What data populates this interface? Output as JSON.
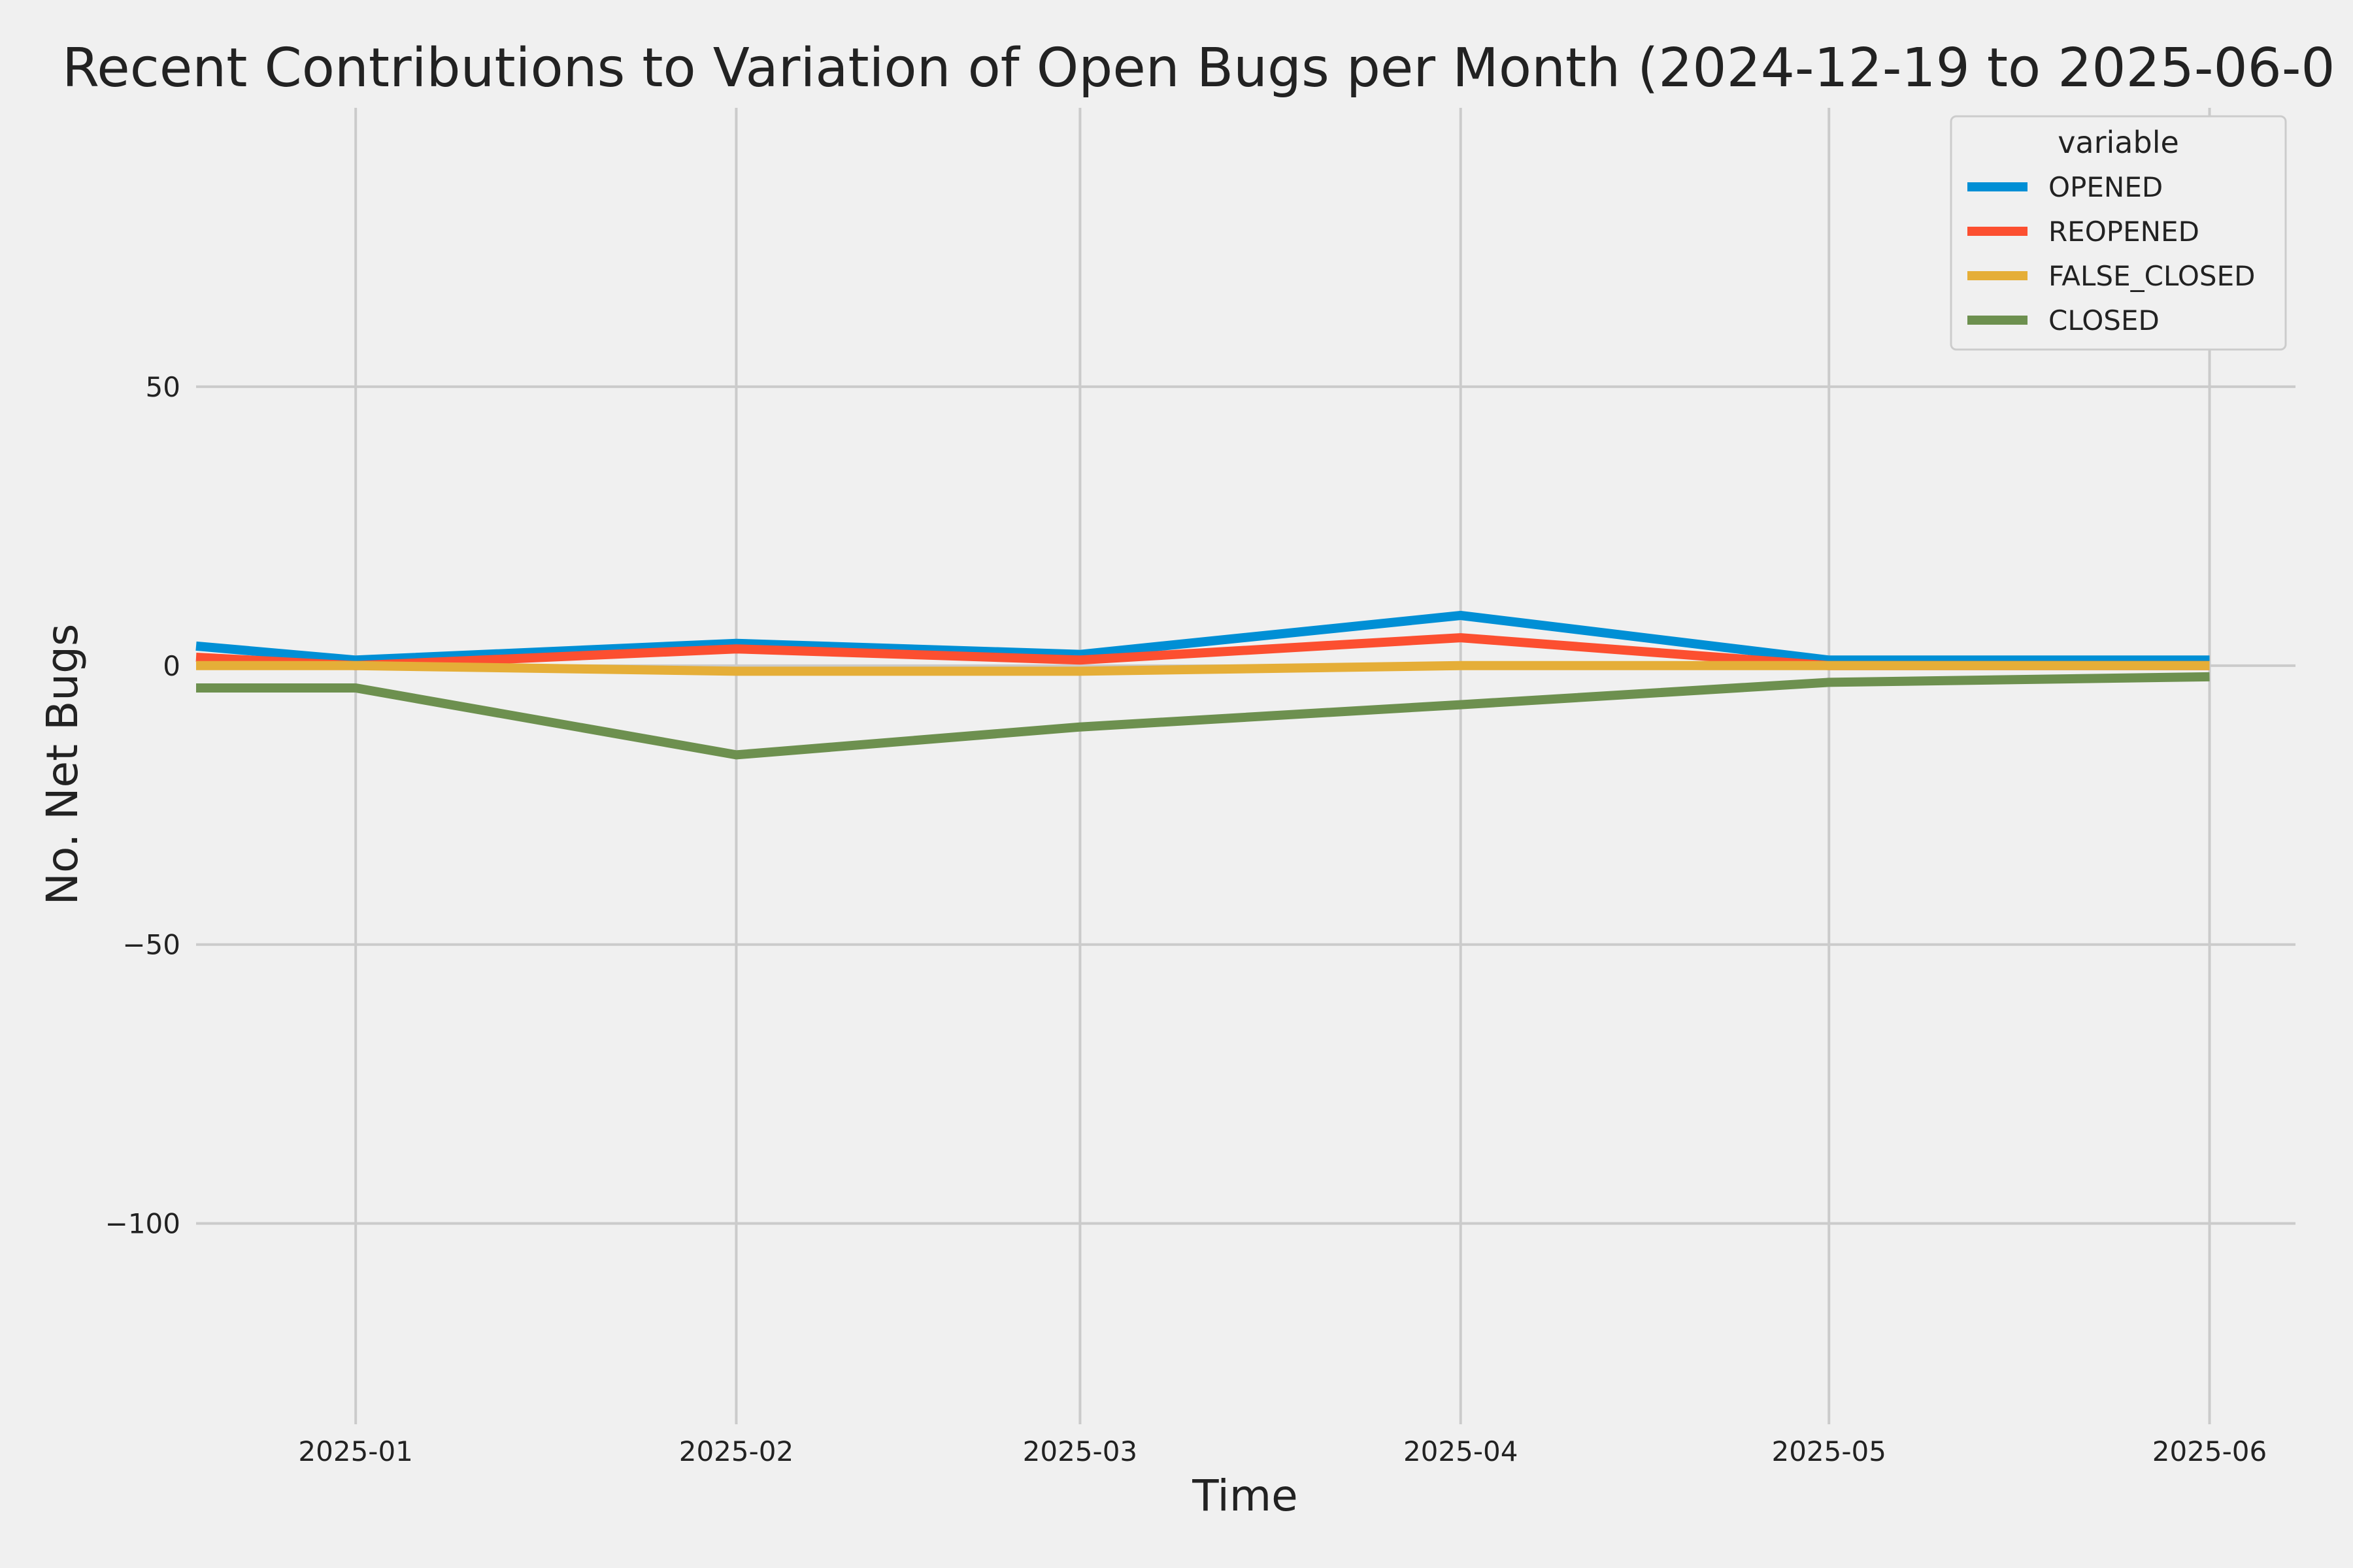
{
  "chart_data": {
    "type": "line",
    "title": "Recent Contributions to Variation of Open Bugs per Month (2024-12-19 to 2025-06-0",
    "xlabel": "Time",
    "ylabel": "No. Net Bugs",
    "x": [
      "2024-12-19",
      "2025-01-01",
      "2025-02-01",
      "2025-03-01",
      "2025-04-01",
      "2025-05-01",
      "2025-06-01"
    ],
    "x_ticks": [
      "2025-01",
      "2025-02",
      "2025-03",
      "2025-04",
      "2025-05",
      "2025-06"
    ],
    "xlim": [
      "2024-12-19",
      "2025-06-08"
    ],
    "y_ticks": [
      50,
      0,
      -50,
      -100
    ],
    "y_tick_labels": [
      "50",
      "0",
      "−50",
      "−100"
    ],
    "ylim": [
      -136,
      100
    ],
    "grid": true,
    "legend": {
      "title": "variable",
      "placement": "top-right"
    },
    "series": [
      {
        "name": "OPENED",
        "color": "#008fd5",
        "values": [
          3.5,
          1,
          4,
          2,
          9,
          1,
          1
        ]
      },
      {
        "name": "REOPENED",
        "color": "#fc4f30",
        "values": [
          1.5,
          0,
          3,
          1,
          5,
          0,
          0
        ]
      },
      {
        "name": "FALSE_CLOSED",
        "color": "#e5ae38",
        "values": [
          0,
          0,
          -1,
          -1,
          0,
          0,
          0
        ]
      },
      {
        "name": "CLOSED",
        "color": "#6d904f",
        "values": [
          -4,
          -4,
          -16,
          -11,
          -7,
          -3,
          -2
        ]
      }
    ]
  }
}
